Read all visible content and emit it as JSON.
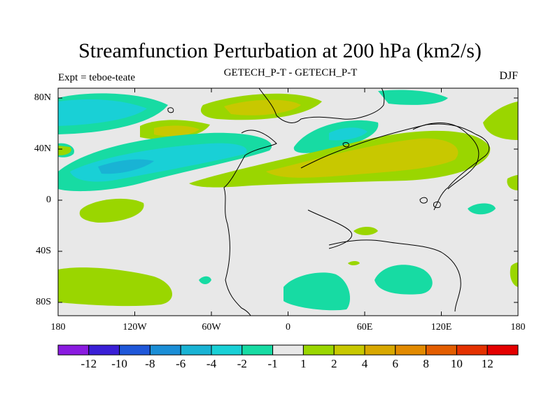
{
  "title": "Streamfunction Perturbation at 200 hPa (km2/s)",
  "subtitle_left": "Expt = teboe-teate",
  "subtitle_center": "GETECH_P-T - GETECH_P-T",
  "subtitle_right": "DJF",
  "lat_labels": [
    "80N",
    "40N",
    "0",
    "40S",
    "80S"
  ],
  "lon_labels": [
    "180",
    "120W",
    "60W",
    "0",
    "60E",
    "120E",
    "180"
  ],
  "colorbar": {
    "labels": [
      "-12",
      "-10",
      "-8",
      "-6",
      "-4",
      "-2",
      "-1",
      "1",
      "2",
      "4",
      "6",
      "8",
      "10",
      "12"
    ],
    "colors": [
      "#8a1be0",
      "#3a1fd6",
      "#1f57d9",
      "#1b8ed6",
      "#19b3d4",
      "#19d0d6",
      "#17dba3",
      "#e8e8e8",
      "#9ad600",
      "#c8c800",
      "#d8a800",
      "#e28a00",
      "#e35d00",
      "#e43100",
      "#e40000"
    ]
  },
  "field_colors": {
    "background": "#e8e8e8",
    "neg1": "#17dba3",
    "neg2": "#19d0d6",
    "neg4": "#19b3d4",
    "pos1": "#9ad600",
    "pos2": "#c8c800"
  }
}
